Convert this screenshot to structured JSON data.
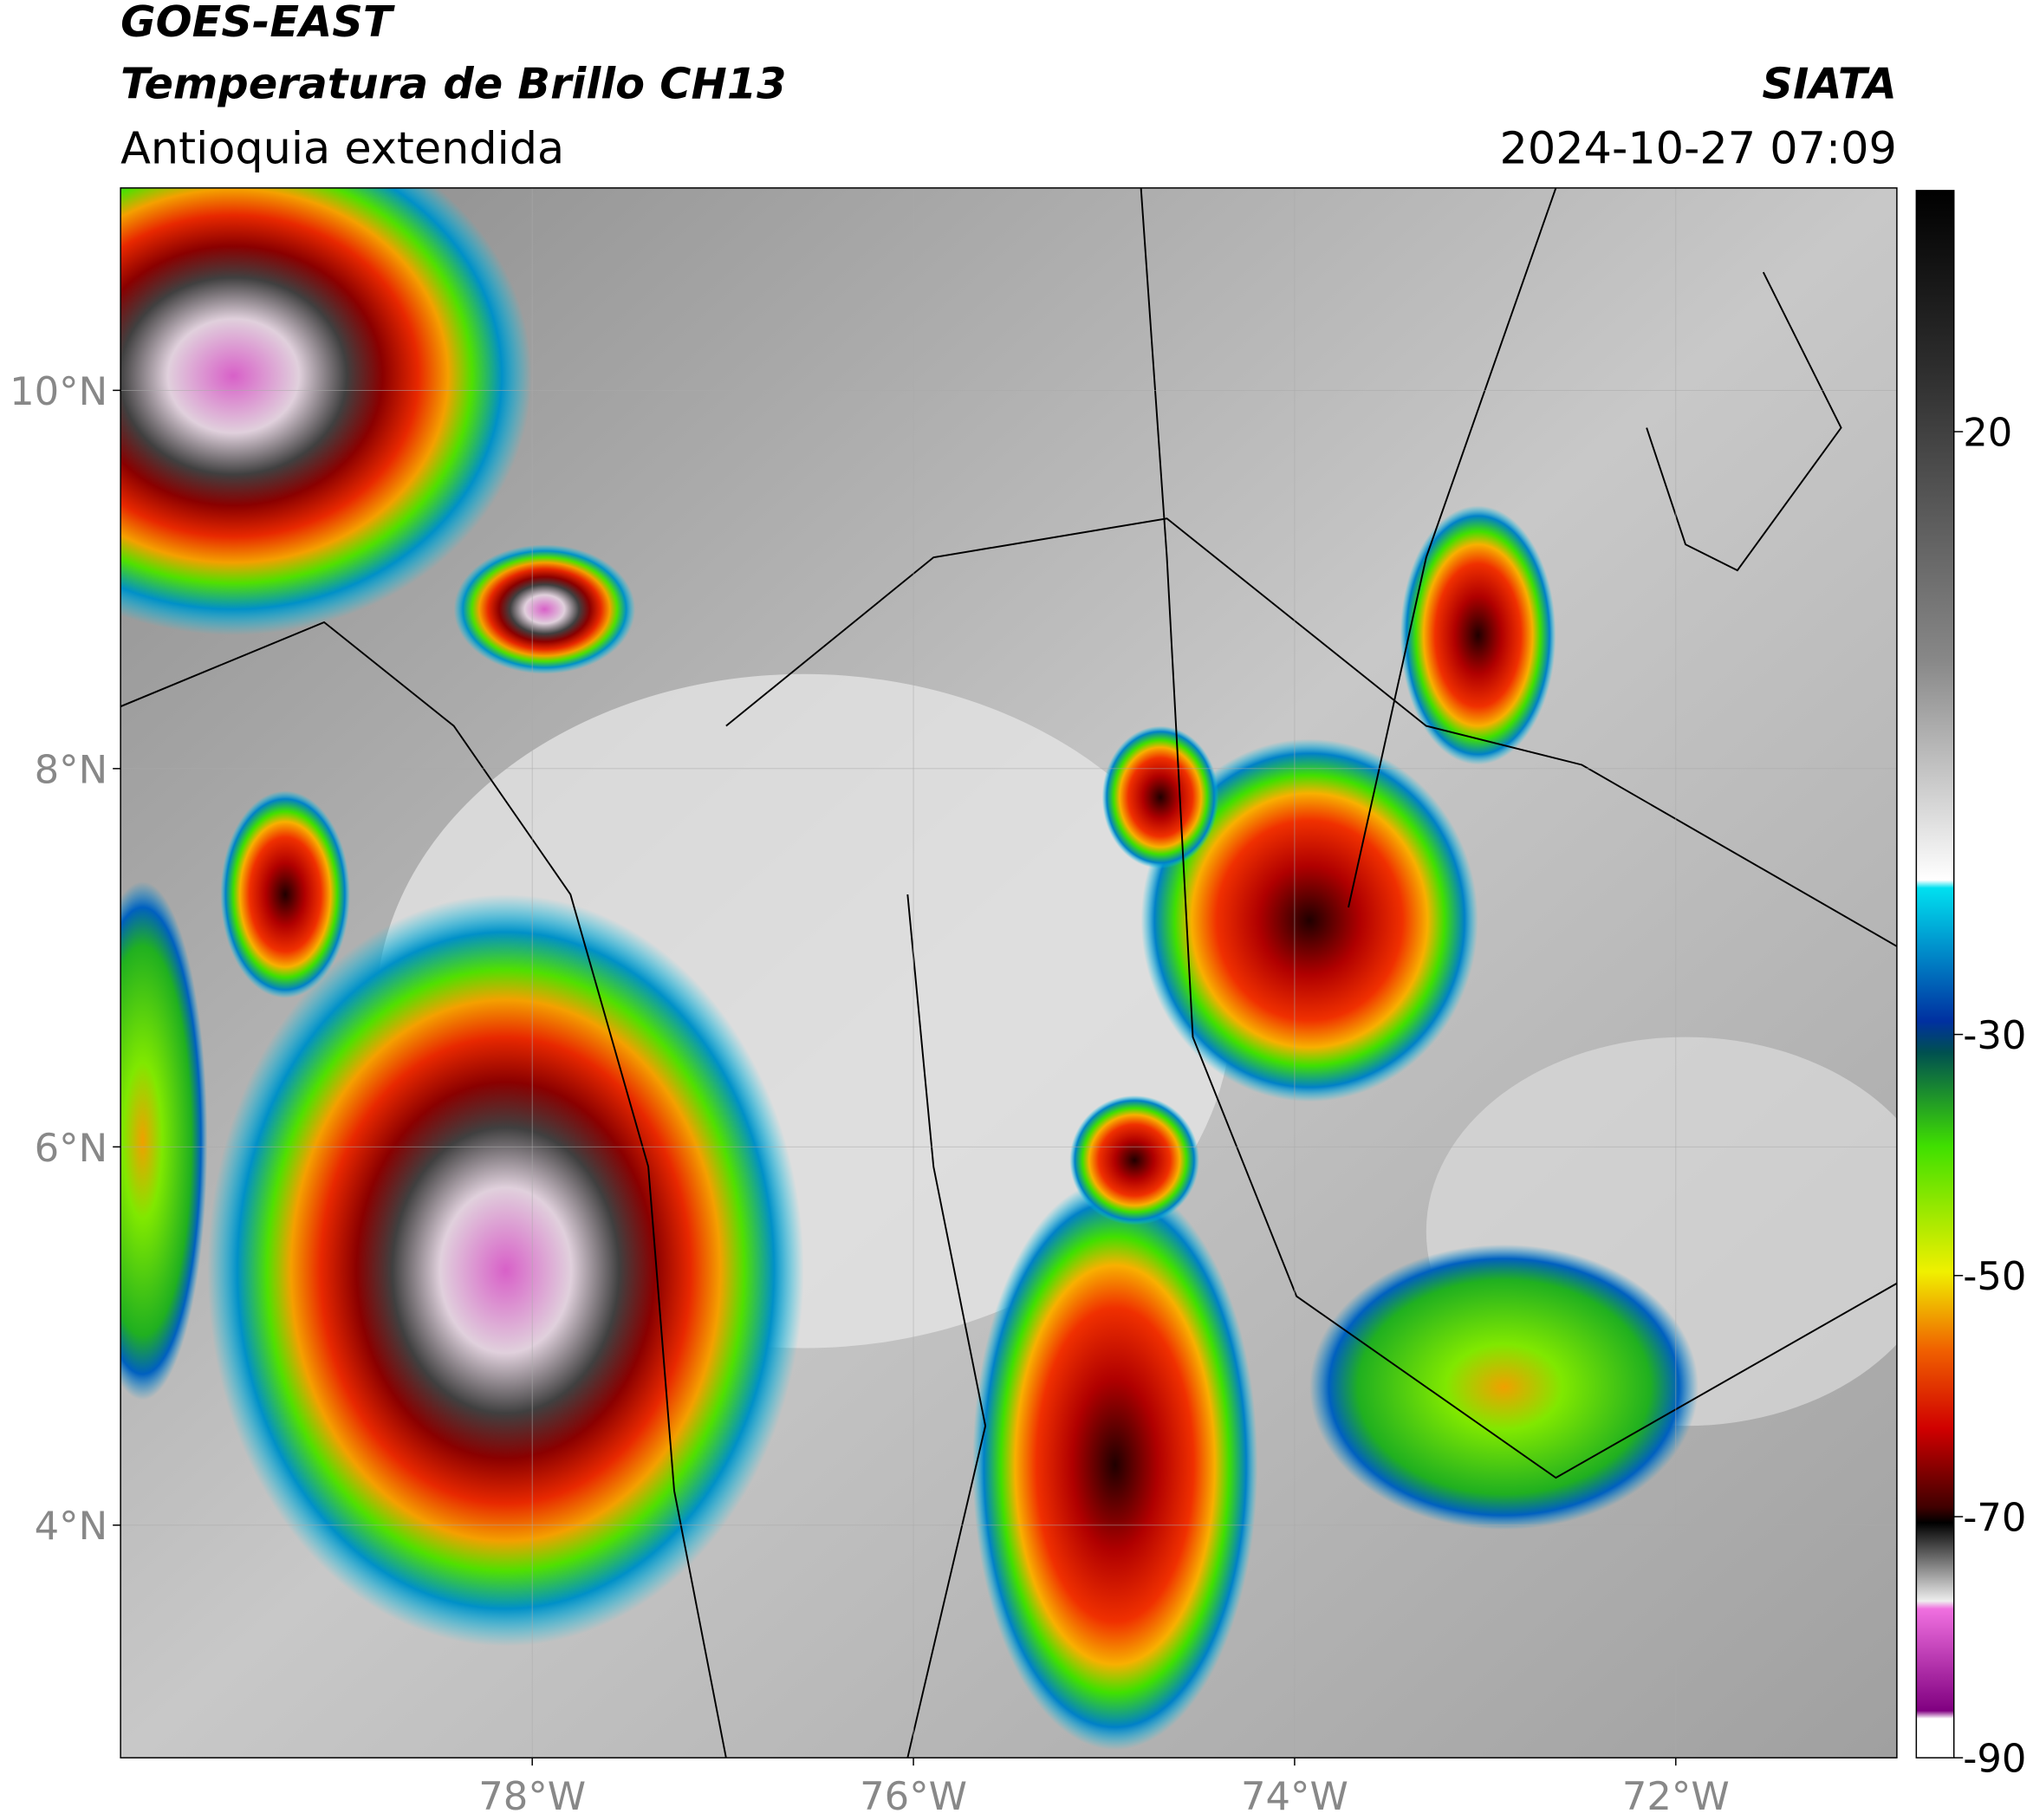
{
  "header": {
    "satellite": "GOES-EAST",
    "product": "Temperatura de Brillo CH13",
    "region": "Antioquia extendida",
    "source": "SIATA",
    "datetime": "2024-10-27 07:09"
  },
  "map": {
    "xlim": [
      -80.16,
      -70.84
    ],
    "ylim": [
      2.77,
      11.07
    ],
    "xticks": [
      {
        "value": -78,
        "label": "78°W"
      },
      {
        "value": -76,
        "label": "76°W"
      },
      {
        "value": -74,
        "label": "74°W"
      },
      {
        "value": -72,
        "label": "72°W"
      }
    ],
    "yticks": [
      {
        "value": 4,
        "label": "4°N"
      },
      {
        "value": 6,
        "label": "6°N"
      },
      {
        "value": 8,
        "label": "8°N"
      },
      {
        "value": 10,
        "label": "10°N"
      }
    ],
    "grid": true
  },
  "colorbar": {
    "ylim": [
      -90,
      40
    ],
    "yticks": [
      -90,
      -70,
      -50,
      -30,
      20
    ]
  }
}
